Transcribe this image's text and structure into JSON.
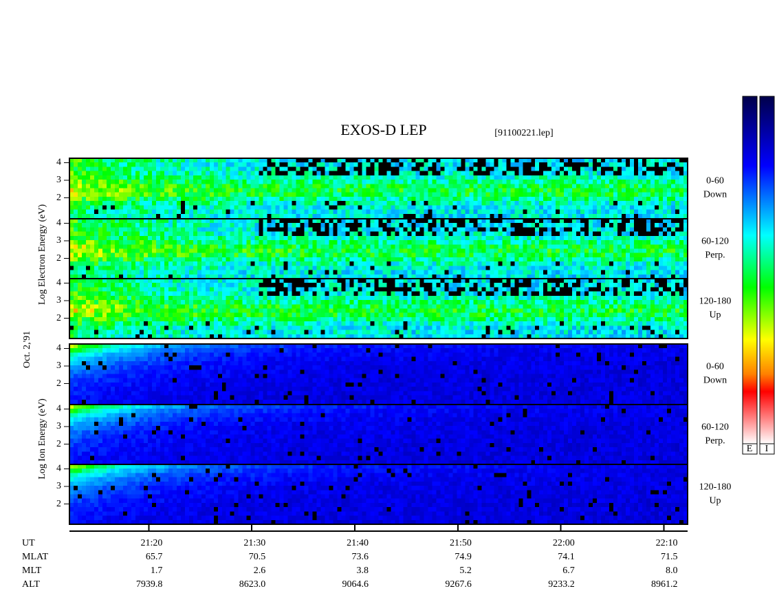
{
  "header": {
    "title": "EXOS-D LEP",
    "file": "[91100221.lep]"
  },
  "side_labels": {
    "electron": "Log Electron Energy (eV)",
    "date": "Oct. 2,'91",
    "ion": "Log Ion Energy (eV)"
  },
  "panels": [
    {
      "species": "electron",
      "pitch": "0-60",
      "direction": "Down"
    },
    {
      "species": "electron",
      "pitch": "60-120",
      "direction": "Perp."
    },
    {
      "species": "electron",
      "pitch": "120-180",
      "direction": "Up"
    },
    {
      "species": "ion",
      "pitch": "0-60",
      "direction": "Down"
    },
    {
      "species": "ion",
      "pitch": "60-120",
      "direction": "Perp."
    },
    {
      "species": "ion",
      "pitch": "120-180",
      "direction": "Up"
    }
  ],
  "ylim": [
    0.85,
    4.25
  ],
  "yticks": [
    2,
    3,
    4
  ],
  "xlim": [
    1272.3,
    1332.3
  ],
  "xticks": [
    {
      "value": 1280,
      "label": "21:20"
    },
    {
      "value": 1290,
      "label": "21:30"
    },
    {
      "value": 1300,
      "label": "21:40"
    },
    {
      "value": 1310,
      "label": "21:50"
    },
    {
      "value": 1320,
      "label": "22:00"
    },
    {
      "value": 1330,
      "label": "22:10"
    }
  ],
  "ephemeris": {
    "labels": [
      "UT",
      "MLAT",
      "MLT",
      "ALT"
    ],
    "MLAT": [
      "65.7",
      "70.5",
      "73.6",
      "74.9",
      "74.1",
      "71.5"
    ],
    "MLT": [
      "1.7",
      "2.6",
      "3.8",
      "5.2",
      "6.7",
      "8.0"
    ],
    "ALT": [
      "7939.8",
      "8623.0",
      "9064.6",
      "9267.6",
      "9233.2",
      "8961.2"
    ]
  },
  "colorbars": [
    "E",
    "I"
  ]
}
